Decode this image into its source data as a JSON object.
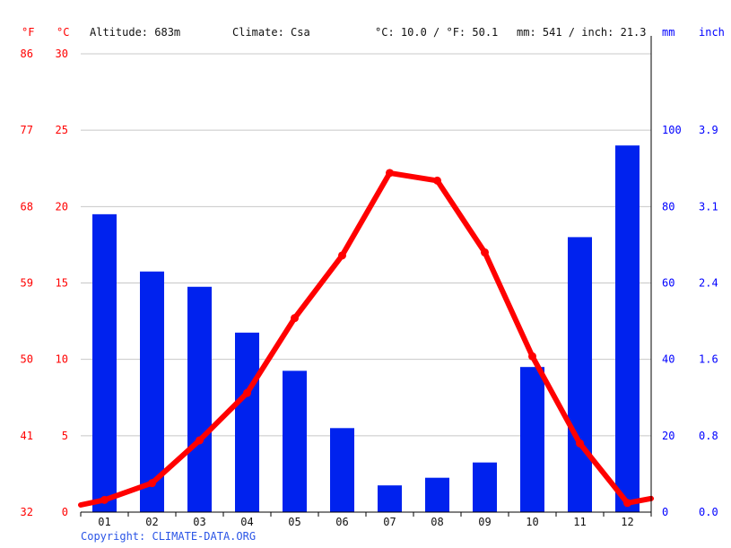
{
  "header": {
    "unit_f": "°F",
    "unit_c": "°C",
    "altitude": "Altitude: 683m",
    "climate": "Climate: Csa",
    "avg_temp": "°C: 10.0 / °F: 50.1",
    "precip_total": "mm: 541 / inch: 21.3",
    "unit_mm": "mm",
    "unit_inch": "inch"
  },
  "copyright": "Copyright: CLIMATE-DATA.ORG",
  "colors": {
    "temp": "#ff0000",
    "precip": "#0022ee",
    "grid": "#c8c8c8",
    "axis": "#000000"
  },
  "chart_data": {
    "type": "bar",
    "categories": [
      "01",
      "02",
      "03",
      "04",
      "05",
      "06",
      "07",
      "08",
      "09",
      "10",
      "11",
      "12"
    ],
    "series": [
      {
        "kind": "bar",
        "axis": "precip_mm",
        "values": [
          78,
          63,
          59,
          47,
          37,
          22,
          7,
          9,
          13,
          38,
          72,
          96
        ]
      },
      {
        "kind": "line",
        "axis": "temp_c",
        "values": [
          0.8,
          1.9,
          4.7,
          7.8,
          12.7,
          16.8,
          22.2,
          21.7,
          17.0,
          10.2,
          4.5,
          0.6
        ]
      }
    ],
    "axes": {
      "temp_c": {
        "ylim": [
          0,
          30
        ],
        "ticks": [
          "0",
          "5",
          "10",
          "15",
          "20",
          "25",
          "30"
        ]
      },
      "temp_f": {
        "ticks": [
          "32",
          "41",
          "50",
          "59",
          "68",
          "77",
          "86"
        ]
      },
      "precip_mm": {
        "ylim": [
          0,
          120
        ],
        "ticks": [
          "0",
          "20",
          "40",
          "60",
          "80",
          "100"
        ]
      },
      "precip_inch": {
        "ticks": [
          "0.0",
          "0.8",
          "1.6",
          "2.4",
          "3.1",
          "3.9"
        ]
      }
    },
    "grid": true
  }
}
